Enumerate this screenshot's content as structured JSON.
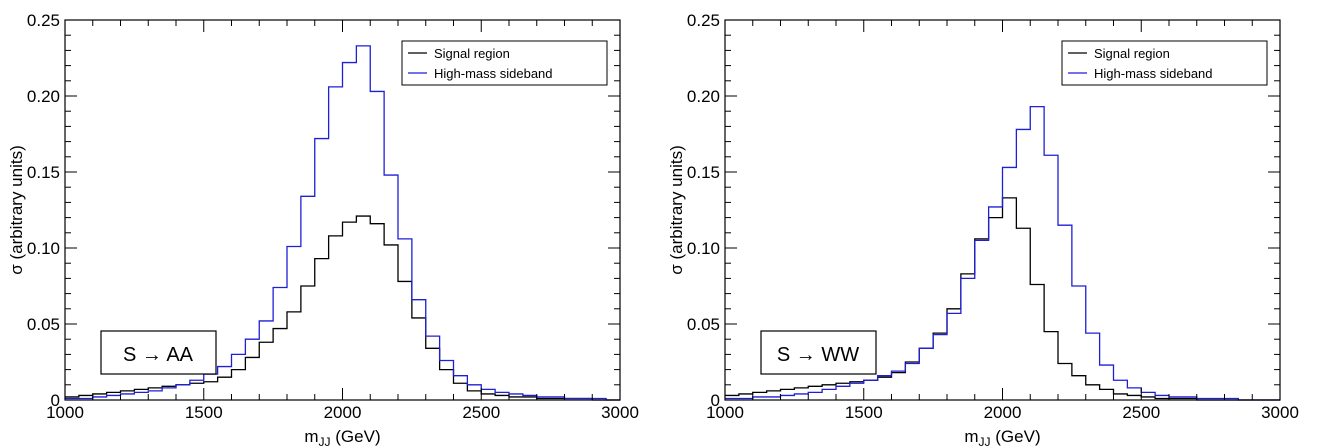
{
  "chart_data": [
    {
      "type": "line",
      "process_label": "S → AA",
      "xlabel_main": "m",
      "xlabel_sub": "JJ",
      "xlabel_unit": " (GeV)",
      "ylabel": "σ (arbitrary units)",
      "xlim": [
        1000,
        3000
      ],
      "ylim": [
        0,
        0.25
      ],
      "xticks": [
        1000,
        1500,
        2000,
        2500,
        3000
      ],
      "yticks": [
        0,
        0.05,
        0.1,
        0.15,
        0.2,
        0.25
      ],
      "ytick_labels": [
        "0",
        "0.05",
        "0.10",
        "0.15",
        "0.20",
        "0.25"
      ],
      "legend_position": "top-right",
      "grid": false,
      "bin_edges_start": 1000,
      "bin_width": 50,
      "series": [
        {
          "name": "Signal region",
          "color": "#000000",
          "values": [
            0.002,
            0.003,
            0.004,
            0.005,
            0.006,
            0.007,
            0.008,
            0.009,
            0.01,
            0.011,
            0.012,
            0.015,
            0.02,
            0.028,
            0.038,
            0.047,
            0.058,
            0.075,
            0.093,
            0.108,
            0.117,
            0.121,
            0.116,
            0.102,
            0.078,
            0.054,
            0.034,
            0.02,
            0.011,
            0.006,
            0.004,
            0.003,
            0.002,
            0.002,
            0.001,
            0.001,
            0.001,
            0.001,
            0.0,
            0.0
          ]
        },
        {
          "name": "High-mass sideband",
          "color": "#1f1fd6",
          "values": [
            0.001,
            0.001,
            0.002,
            0.003,
            0.004,
            0.005,
            0.006,
            0.008,
            0.01,
            0.013,
            0.017,
            0.022,
            0.03,
            0.04,
            0.052,
            0.074,
            0.101,
            0.134,
            0.172,
            0.206,
            0.222,
            0.233,
            0.203,
            0.148,
            0.106,
            0.066,
            0.042,
            0.026,
            0.016,
            0.01,
            0.007,
            0.005,
            0.004,
            0.003,
            0.002,
            0.002,
            0.001,
            0.001,
            0.001,
            0.0
          ]
        }
      ]
    },
    {
      "type": "line",
      "process_label": "S → WW",
      "xlabel_main": "m",
      "xlabel_sub": "JJ",
      "xlabel_unit": " (GeV)",
      "ylabel": "σ (arbitrary units)",
      "xlim": [
        1000,
        3000
      ],
      "ylim": [
        0,
        0.25
      ],
      "xticks": [
        1000,
        1500,
        2000,
        2500,
        3000
      ],
      "yticks": [
        0,
        0.05,
        0.1,
        0.15,
        0.2,
        0.25
      ],
      "ytick_labels": [
        "0",
        "0.05",
        "0.10",
        "0.15",
        "0.20",
        "0.25"
      ],
      "legend_position": "top-right",
      "grid": false,
      "bin_edges_start": 1000,
      "bin_width": 50,
      "series": [
        {
          "name": "Signal region",
          "color": "#000000",
          "values": [
            0.003,
            0.004,
            0.005,
            0.006,
            0.007,
            0.008,
            0.009,
            0.01,
            0.011,
            0.012,
            0.013,
            0.015,
            0.018,
            0.025,
            0.034,
            0.044,
            0.06,
            0.083,
            0.106,
            0.12,
            0.133,
            0.113,
            0.076,
            0.045,
            0.024,
            0.016,
            0.01,
            0.007,
            0.004,
            0.003,
            0.002,
            0.001,
            0.001,
            0.001,
            0.0,
            0.0,
            0.0,
            0.0,
            0.0,
            0.0
          ]
        },
        {
          "name": "High-mass sideband",
          "color": "#1f1fd6",
          "values": [
            0.001,
            0.001,
            0.002,
            0.002,
            0.003,
            0.004,
            0.005,
            0.007,
            0.009,
            0.011,
            0.013,
            0.016,
            0.019,
            0.024,
            0.034,
            0.043,
            0.057,
            0.08,
            0.105,
            0.127,
            0.153,
            0.178,
            0.193,
            0.161,
            0.115,
            0.075,
            0.044,
            0.023,
            0.013,
            0.008,
            0.005,
            0.003,
            0.002,
            0.002,
            0.001,
            0.001,
            0.001,
            0.0,
            0.0,
            0.0
          ]
        }
      ]
    }
  ]
}
